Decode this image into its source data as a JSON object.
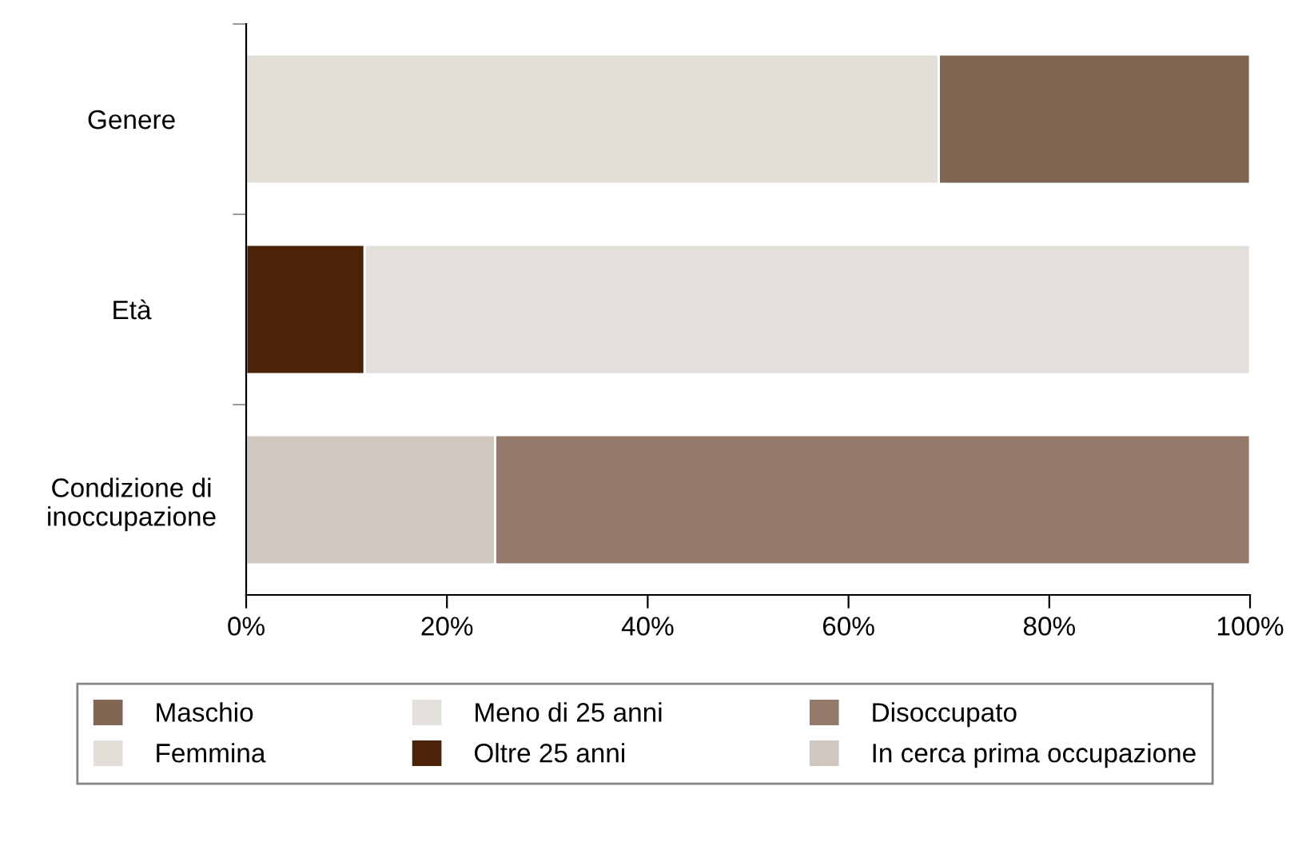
{
  "chart_data": {
    "type": "bar",
    "orientation": "horizontal",
    "stacked": true,
    "categories": [
      "Genere",
      "Età",
      "Condizione di\ninoccupazione"
    ],
    "series": [
      {
        "name": "Femmina",
        "color": "#e4ded8",
        "values": [
          69.0,
          null,
          null
        ]
      },
      {
        "name": "Maschio",
        "color": "#7f6552",
        "values": [
          31.0,
          null,
          null
        ]
      },
      {
        "name": "Oltre 25 anni",
        "color": "#4b2309",
        "values": [
          null,
          11.8,
          null
        ]
      },
      {
        "name": "Meno di 25 anni",
        "color": "#e3dfdb",
        "values": [
          null,
          88.2,
          null
        ]
      },
      {
        "name": "In cerca prima occupazione",
        "color": "#d0c7c1",
        "values": [
          null,
          null,
          24.8
        ]
      },
      {
        "name": "Disoccupato",
        "color": "#937a6a",
        "values": [
          null,
          null,
          75.2
        ]
      }
    ],
    "xlim": [
      0,
      100
    ],
    "xticks": [
      {
        "value": 0,
        "label": "0%"
      },
      {
        "value": 20,
        "label": "20%"
      },
      {
        "value": 40,
        "label": "40%"
      },
      {
        "value": 60,
        "label": "60%"
      },
      {
        "value": 80,
        "label": "80%"
      },
      {
        "value": 100,
        "label": "100%"
      }
    ],
    "grid": false,
    "legend": "bottom"
  }
}
